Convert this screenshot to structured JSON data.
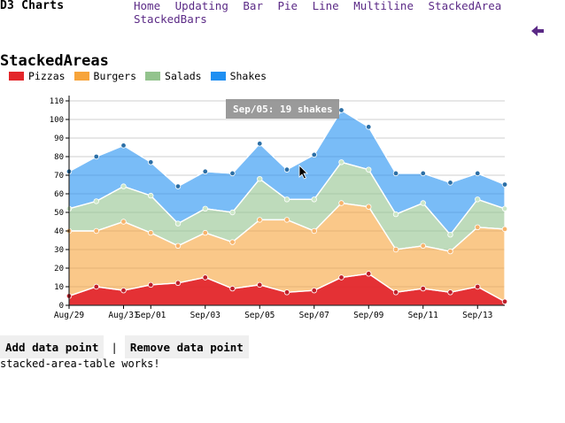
{
  "header": {
    "brand": "D3 Charts",
    "nav": [
      {
        "label": "Home"
      },
      {
        "label": "Updating"
      },
      {
        "label": "Bar"
      },
      {
        "label": "Pie"
      },
      {
        "label": "Line"
      },
      {
        "label": "Multiline"
      },
      {
        "label": "StackedArea"
      },
      {
        "label": "StackedBars"
      }
    ],
    "back_icon": "arrow-left-icon"
  },
  "page": {
    "title": "StackedAreas",
    "status": "stacked-area-table works!"
  },
  "buttons": {
    "add_label": "Add data point",
    "separator": "|",
    "remove_label": "Remove data point"
  },
  "tooltip": "Sep/05: 19 shakes",
  "chart_data": {
    "type": "area",
    "stacked": true,
    "x": [
      "Aug/29",
      "Aug/30",
      "Aug/31",
      "Sep/01",
      "Sep/02",
      "Sep/03",
      "Sep/04",
      "Sep/05",
      "Sep/06",
      "Sep/07",
      "Sep/08",
      "Sep/09",
      "Sep/10",
      "Sep/11",
      "Sep/12",
      "Sep/13",
      "Sep/14"
    ],
    "x_tick_labels": [
      "Aug/29",
      "Aug/31",
      "Sep/01",
      "Sep/03",
      "Sep/05",
      "Sep/07",
      "Sep/09",
      "Sep/11",
      "Sep/13"
    ],
    "y_ticks": [
      0,
      10,
      20,
      30,
      40,
      50,
      60,
      70,
      80,
      90,
      100,
      110
    ],
    "ylim": [
      0,
      110
    ],
    "grid": true,
    "legend_position": "top-left",
    "series": [
      {
        "name": "Pizzas",
        "color": "#e3262a",
        "values": [
          5,
          10,
          8,
          11,
          12,
          15,
          9,
          11,
          7,
          8,
          15,
          17,
          7,
          9,
          7,
          10,
          2
        ]
      },
      {
        "name": "Burgers",
        "color": "#f7a43a",
        "values": [
          35,
          30,
          37,
          28,
          20,
          24,
          25,
          35,
          39,
          32,
          40,
          36,
          23,
          23,
          22,
          32,
          39
        ]
      },
      {
        "name": "Salads",
        "color": "#93c38d",
        "values": [
          12,
          16,
          19,
          20,
          12,
          13,
          16,
          22,
          11,
          17,
          22,
          20,
          19,
          23,
          9,
          15,
          11
        ]
      },
      {
        "name": "Shakes",
        "color": "#1f8ff2",
        "values": [
          20,
          24,
          22,
          18,
          20,
          20,
          21,
          19,
          16,
          24,
          28,
          23,
          22,
          16,
          28,
          14,
          13
        ]
      }
    ]
  }
}
